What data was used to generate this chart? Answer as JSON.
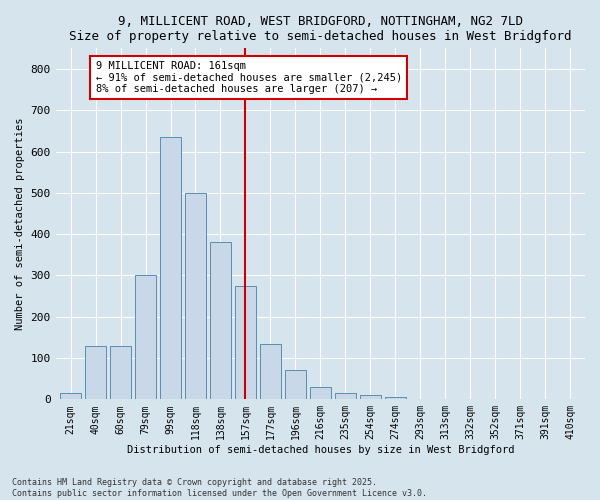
{
  "title1": "9, MILLICENT ROAD, WEST BRIDGFORD, NOTTINGHAM, NG2 7LD",
  "title2": "Size of property relative to semi-detached houses in West Bridgford",
  "xlabel": "Distribution of semi-detached houses by size in West Bridgford",
  "ylabel": "Number of semi-detached properties",
  "categories": [
    "21sqm",
    "40sqm",
    "60sqm",
    "79sqm",
    "99sqm",
    "118sqm",
    "138sqm",
    "157sqm",
    "177sqm",
    "196sqm",
    "216sqm",
    "235sqm",
    "254sqm",
    "274sqm",
    "293sqm",
    "313sqm",
    "332sqm",
    "352sqm",
    "371sqm",
    "391sqm",
    "410sqm"
  ],
  "values": [
    15,
    130,
    130,
    300,
    635,
    500,
    380,
    275,
    135,
    70,
    30,
    15,
    10,
    5,
    2,
    1,
    0,
    0,
    0,
    0,
    0
  ],
  "bar_color": "#c8d8e8",
  "bar_edge_color": "#5b8db0",
  "highlight_index": 7,
  "highlight_color": "#cc0000",
  "annotation_title": "9 MILLICENT ROAD: 161sqm",
  "annotation_line1": "← 91% of semi-detached houses are smaller (2,245)",
  "annotation_line2": "8% of semi-detached houses are larger (207) →",
  "ylim": [
    0,
    850
  ],
  "yticks": [
    0,
    100,
    200,
    300,
    400,
    500,
    600,
    700,
    800
  ],
  "bg_color": "#d6e4ee",
  "grid_color": "#ffffff",
  "footnote1": "Contains HM Land Registry data © Crown copyright and database right 2025.",
  "footnote2": "Contains public sector information licensed under the Open Government Licence v3.0."
}
